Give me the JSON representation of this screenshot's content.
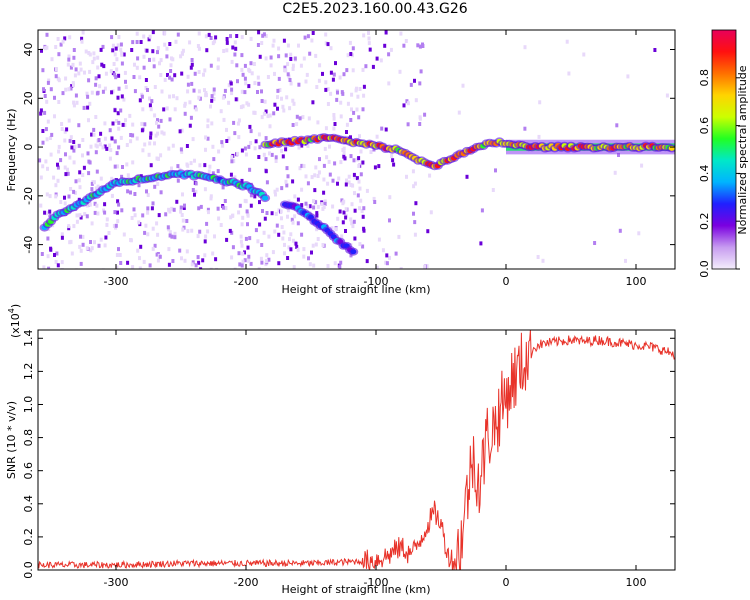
{
  "title": "C2E5.2023.160.00.43.G26",
  "chart_data": [
    {
      "type": "heatmap",
      "title": "C2E5.2023.160.00.43.G26",
      "xlabel": "Height of straight line (km)",
      "ylabel": "Frequency (Hz)",
      "xlim": [
        -360,
        130
      ],
      "ylim": [
        -50,
        48
      ],
      "x_ticks": [
        -300,
        -200,
        -100,
        0,
        100
      ],
      "y_ticks": [
        -40,
        -20,
        0,
        20,
        40
      ],
      "colorbar": {
        "label": "Normalized spectral amplitude",
        "range": [
          0,
          1
        ],
        "ticks": [
          "0.0",
          "0.2",
          "0.4",
          "0.6",
          "0.8"
        ],
        "colormap": [
          "#f4eefb",
          "#c79cf0",
          "#7a00e0",
          "#2020ff",
          "#00b4ff",
          "#00e8c8",
          "#22ff22",
          "#ccff00",
          "#ffd400",
          "#ff7000",
          "#ff1010",
          "#e8005a"
        ]
      },
      "traces": [
        {
          "description_points": [
            [
              -355,
              -33
            ],
            [
              -345,
              -28
            ],
            [
              -330,
              -24
            ],
            [
              -315,
              -19
            ],
            [
              -300,
              -15
            ],
            [
              -290,
              -14
            ],
            [
              -270,
              -12
            ],
            [
              -250,
              -11
            ],
            [
              -230,
              -12
            ],
            [
              -215,
              -14
            ],
            [
              -200,
              -16
            ],
            [
              -190,
              -19
            ],
            [
              -183,
              -21
            ]
          ],
          "amplitude": 0.45
        },
        {
          "description_points": [
            [
              -170,
              -23
            ],
            [
              -160,
              -25
            ],
            [
              -150,
              -29
            ],
            [
              -140,
              -33
            ],
            [
              -130,
              -38
            ],
            [
              -120,
              -42
            ],
            [
              -115,
              -44
            ]
          ],
          "amplitude": 0.3
        },
        {
          "description_points": [
            [
              -185,
              1
            ],
            [
              -170,
              2
            ],
            [
              -150,
              3
            ],
            [
              -135,
              4
            ],
            [
              -120,
              2
            ],
            [
              -105,
              1
            ],
            [
              -95,
              0
            ],
            [
              -85,
              -1
            ],
            [
              -75,
              -3
            ],
            [
              -65,
              -6
            ],
            [
              -55,
              -8
            ],
            [
              -45,
              -5
            ],
            [
              -35,
              -3
            ],
            [
              -25,
              -1
            ],
            [
              -15,
              1
            ],
            [
              -5,
              2
            ],
            [
              5,
              1
            ],
            [
              20,
              0
            ],
            [
              60,
              0
            ],
            [
              100,
              0
            ],
            [
              130,
              0
            ]
          ],
          "amplitude": 0.8
        }
      ]
    },
    {
      "type": "line",
      "xlabel": "Height of straight line (km)",
      "ylabel": "SNR (10 * v/v)",
      "y_exponent_label": "(x10",
      "y_exponent_power": "4",
      "y_exponent_close": ")",
      "xlim": [
        -360,
        130
      ],
      "ylim": [
        0,
        1.45
      ],
      "x_ticks": [
        -300,
        -200,
        -100,
        0,
        100
      ],
      "y_ticks": [
        "0.0",
        "0.2",
        "0.4",
        "0.6",
        "0.8",
        "1.0",
        "1.2",
        "1.4"
      ],
      "series": [
        {
          "color": "#e8332a",
          "x": [
            -360,
            -300,
            -250,
            -200,
            -150,
            -120,
            -100,
            -90,
            -85,
            -80,
            -75,
            -70,
            -65,
            -60,
            -55,
            -50,
            -45,
            -40,
            -35,
            -30,
            -25,
            -20,
            -15,
            -10,
            -5,
            0,
            5,
            10,
            15,
            20,
            25,
            30,
            40,
            50,
            60,
            70,
            80,
            90,
            100,
            110,
            120,
            130
          ],
          "y": [
            0.03,
            0.03,
            0.04,
            0.04,
            0.04,
            0.05,
            0.06,
            0.09,
            0.12,
            0.14,
            0.1,
            0.12,
            0.2,
            0.28,
            0.35,
            0.28,
            0.1,
            0.05,
            0.15,
            0.45,
            0.7,
            0.5,
            0.8,
            0.85,
            0.95,
            1.05,
            1.15,
            1.2,
            1.28,
            1.33,
            1.36,
            1.37,
            1.38,
            1.39,
            1.38,
            1.39,
            1.38,
            1.37,
            1.36,
            1.35,
            1.33,
            1.3
          ]
        }
      ]
    }
  ]
}
